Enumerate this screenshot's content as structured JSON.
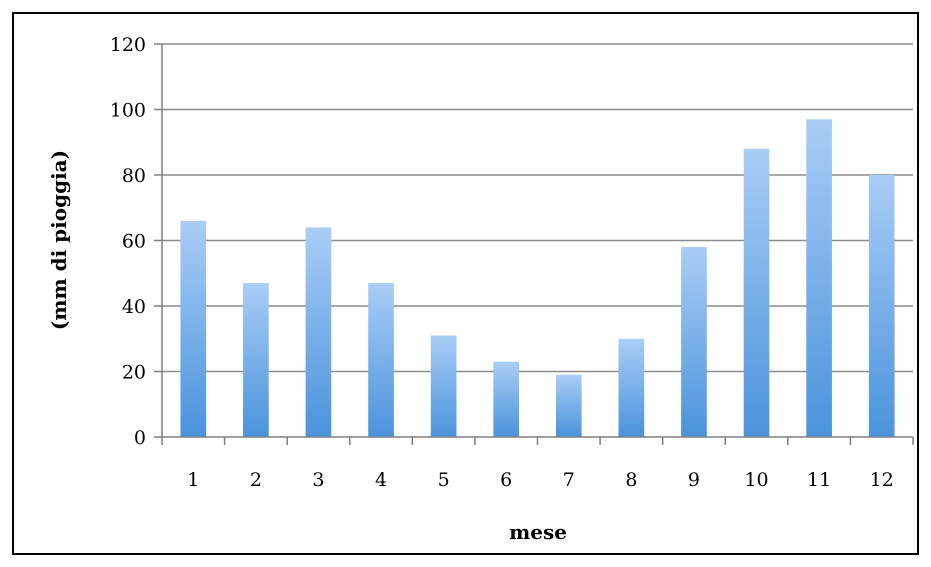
{
  "chart_data": {
    "type": "bar",
    "title": "",
    "xlabel": "mese",
    "ylabel": "(mm di pioggia)",
    "categories": [
      "1",
      "2",
      "3",
      "4",
      "5",
      "6",
      "7",
      "8",
      "9",
      "10",
      "11",
      "12"
    ],
    "values": [
      66,
      47,
      64,
      47,
      31,
      23,
      19,
      30,
      58,
      88,
      97,
      80
    ],
    "ylim": [
      0,
      120
    ],
    "yticks": [
      "0",
      "20",
      "40",
      "60",
      "80",
      "100",
      "120"
    ],
    "grid": true,
    "legend": "none",
    "colors": {
      "bar_top": "#a9cdf6",
      "bar_bottom": "#4a93dc",
      "grid": "#8c8c8c",
      "axis": "#7f7f7f"
    }
  }
}
